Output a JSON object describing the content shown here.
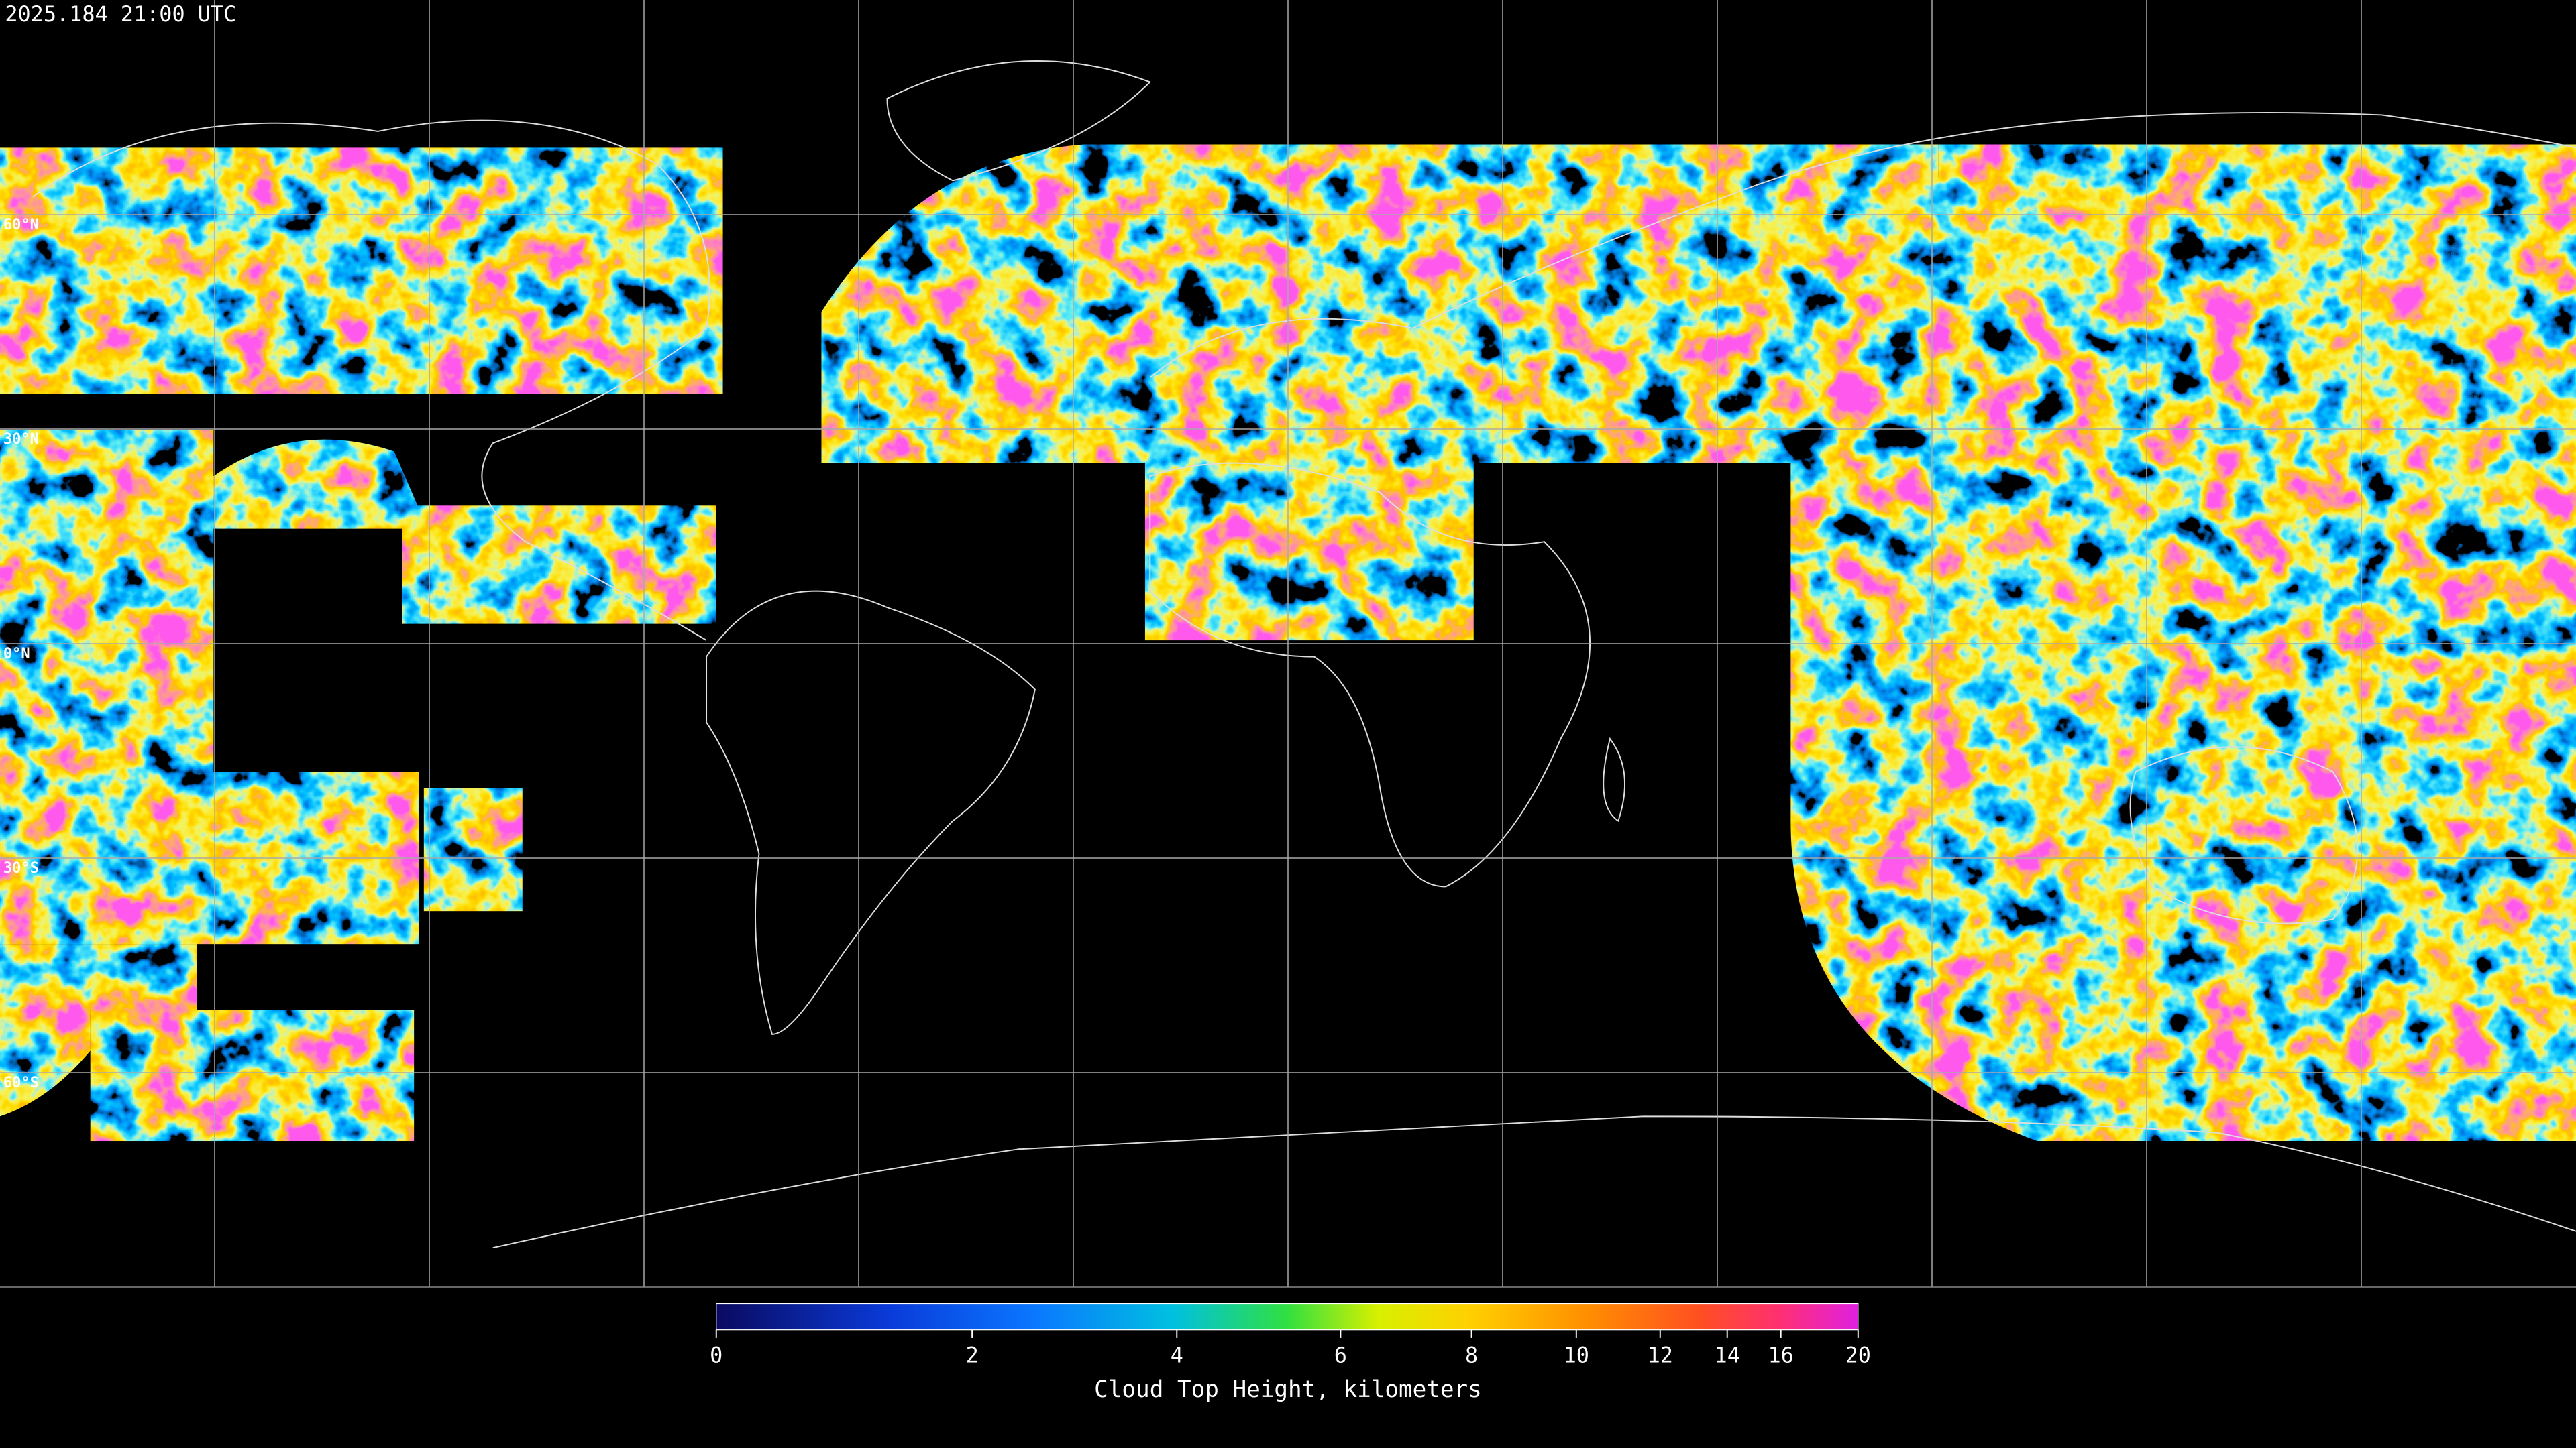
{
  "header": {
    "timestamp": "2025.184 21:00 UTC"
  },
  "map": {
    "lat_labels": [
      "60°N",
      "30°N",
      "0°N",
      "30°S",
      "60°S"
    ]
  },
  "chart_data": {
    "type": "colorbar",
    "xlabel": "Cloud Top Height, kilometers",
    "xlim": [
      0,
      20
    ],
    "xticks": [
      0,
      2,
      4,
      6,
      8,
      10,
      12,
      14,
      16,
      20
    ]
  }
}
